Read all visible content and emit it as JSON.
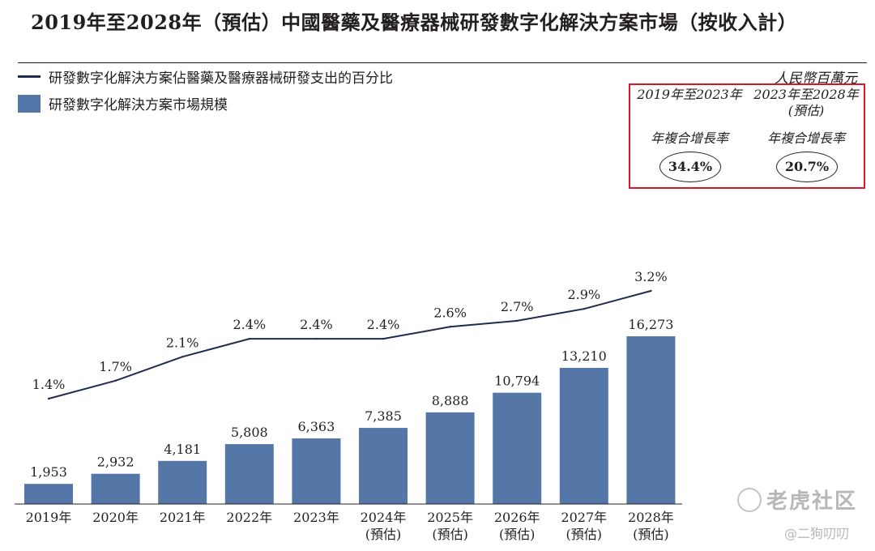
{
  "title": "2019年至2028年（預估）中國醫藥及醫療器械研發數字化解決方案市場（按收入計）",
  "unit": "人民幣百萬元",
  "cagr": {
    "periods": [
      {
        "period": "2019年至2023年",
        "note": "",
        "label": "年複合增長率",
        "value": "34.4%"
      },
      {
        "period": "2023年至2028年",
        "note": "(預估)",
        "label": "年複合增長率",
        "value": "20.7%"
      }
    ]
  },
  "watermark": {
    "brand": "老虎社区",
    "handle": "@二狗叨叨"
  },
  "colors": {
    "bar": "#5477a8",
    "line": "#1f2b4f",
    "cagr_border": "#d7182a"
  },
  "chart_data": {
    "type": "bar",
    "categories": [
      "2019年",
      "2020年",
      "2021年",
      "2022年",
      "2023年",
      "2024年",
      "2025年",
      "2026年",
      "2027年",
      "2028年"
    ],
    "category_notes": [
      "",
      "",
      "",
      "",
      "",
      "(預估)",
      "(預估)",
      "(預估)",
      "(預估)",
      "(預估)"
    ],
    "series": [
      {
        "name": "研發數字化解決方案市場規模",
        "type": "bar",
        "values": [
          1953,
          2932,
          4181,
          5808,
          6363,
          7385,
          8888,
          10794,
          13210,
          16273
        ],
        "labels": [
          "1,953",
          "2,932",
          "4,181",
          "5,808",
          "6,363",
          "7,385",
          "8,888",
          "10,794",
          "13,210",
          "16,273"
        ]
      },
      {
        "name": "研發數字化解決方案佔醫藥及醫療器械研發支出的百分比",
        "type": "line",
        "values": [
          1.4,
          1.7,
          2.1,
          2.4,
          2.4,
          2.4,
          2.6,
          2.7,
          2.9,
          3.2
        ],
        "labels": [
          "1.4%",
          "1.7%",
          "2.1%",
          "2.4%",
          "2.4%",
          "2.4%",
          "2.6%",
          "2.7%",
          "2.9%",
          "3.2%"
        ]
      }
    ],
    "ylim": [
      0,
      16273
    ],
    "y2lim": [
      1.4,
      3.2
    ],
    "title": "2019年至2028年（預估）中國醫藥及醫療器械研發數字化解決方案市場（按收入計）",
    "xlabel": "",
    "ylabel": "人民幣百萬元",
    "legend": "top-left",
    "grid": false
  }
}
